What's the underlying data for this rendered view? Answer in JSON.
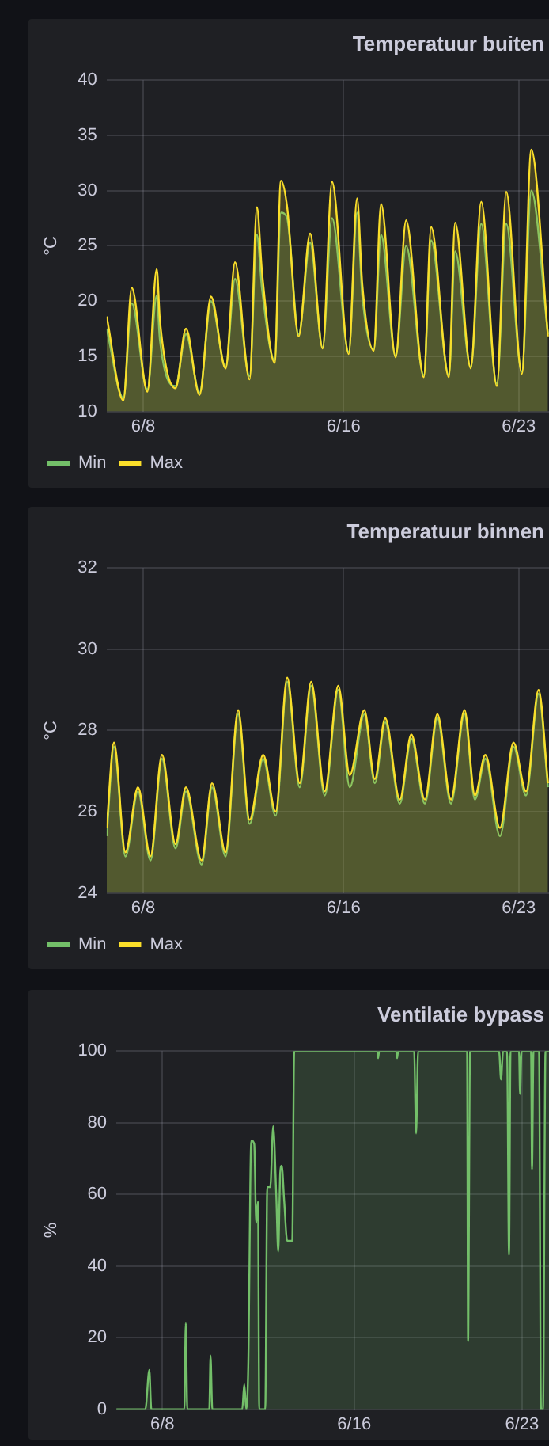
{
  "chart_data": [
    {
      "type": "area",
      "title": "Temperatuur buiten",
      "ylabel": "°C",
      "xlim": [
        "--06-06T13:00",
        "--06-24T05:00"
      ],
      "xticks": [
        {
          "value": "--06-08",
          "label": "6/8"
        },
        {
          "value": "--06-16",
          "label": "6/16"
        },
        {
          "value": "--06-23",
          "label": "6/23"
        }
      ],
      "ylim": [
        10,
        40
      ],
      "yticks": [
        10,
        15,
        20,
        25,
        30,
        35,
        40
      ],
      "grid": true,
      "legend": "bottom left",
      "x": [
        "--06-06T13:00",
        "--06-07T05:00",
        "--06-07T13:00",
        "--06-08T04:00",
        "--06-08T13:00",
        "--06-08T16:00",
        "--06-09T07:00",
        "--06-09T17:00",
        "--06-10T06:00",
        "--06-10T17:00",
        "--06-11T07:00",
        "--06-11T16:00",
        "--06-12T06:00",
        "--06-12T13:00",
        "--06-12T18:00",
        "--06-13T06:00",
        "--06-13T12:00",
        "--06-13T18:00",
        "--06-14T05:00",
        "--06-14T16:00",
        "--06-15T04:00",
        "--06-15T13:00",
        "--06-16T05:00",
        "--06-16T13:00",
        "--06-16T18:00",
        "--06-17T05:00",
        "--06-17T12:00",
        "--06-18T02:00",
        "--06-18T12:00",
        "--06-19T05:00",
        "--06-19T12:00",
        "--06-20T05:00",
        "--06-20T11:00",
        "--06-21T02:00",
        "--06-21T12:00",
        "--06-22T03:00",
        "--06-22T12:00",
        "--06-23T03:00",
        "--06-23T12:00",
        "--06-24T04:00"
      ],
      "series": [
        {
          "name": "Min",
          "color": "#73bf69",
          "values": [
            17.5,
            11.2,
            19.8,
            12.0,
            20.5,
            16.5,
            12.3,
            17.0,
            11.7,
            20.0,
            14.0,
            22.0,
            13.2,
            26.0,
            21.0,
            14.6,
            28.0,
            27.5,
            17.0,
            25.3,
            15.8,
            27.5,
            15.4,
            28.0,
            20.5,
            15.6,
            26.0,
            15.0,
            25.0,
            13.3,
            25.5,
            13.3,
            24.5,
            14.0,
            27.0,
            12.5,
            27.0,
            13.6,
            30.0,
            17.0
          ]
        },
        {
          "name": "Max",
          "color": "#fade2a",
          "values": [
            18.6,
            11.0,
            21.2,
            11.8,
            22.9,
            18.3,
            12.1,
            17.5,
            11.5,
            20.4,
            13.9,
            23.5,
            12.9,
            28.5,
            22.5,
            14.4,
            30.9,
            28.5,
            16.8,
            26.1,
            15.7,
            30.8,
            15.2,
            29.3,
            21.5,
            15.5,
            28.8,
            14.9,
            27.3,
            13.1,
            26.7,
            13.1,
            27.1,
            13.9,
            29.0,
            12.3,
            29.9,
            13.4,
            33.7,
            16.8
          ]
        }
      ]
    },
    {
      "type": "area",
      "title": "Temperatuur binnen",
      "ylabel": "°C",
      "xlim": [
        "--06-06T13:00",
        "--06-24T05:00"
      ],
      "xticks": [
        {
          "value": "--06-08",
          "label": "6/8"
        },
        {
          "value": "--06-16",
          "label": "6/16"
        },
        {
          "value": "--06-23",
          "label": "6/23"
        }
      ],
      "ylim": [
        24,
        32
      ],
      "yticks": [
        24,
        26,
        28,
        30,
        32
      ],
      "grid": true,
      "legend": "bottom left",
      "x": [
        "--06-06T13:00",
        "--06-06T20:00",
        "--06-07T07:00",
        "--06-07T19:00",
        "--06-08T07:00",
        "--06-08T18:00",
        "--06-09T07:00",
        "--06-09T17:00",
        "--06-10T08:00",
        "--06-10T18:00",
        "--06-11T07:00",
        "--06-11T19:00",
        "--06-12T06:00",
        "--06-12T19:00",
        "--06-13T07:00",
        "--06-13T18:00",
        "--06-14T06:00",
        "--06-14T17:00",
        "--06-15T06:00",
        "--06-15T19:00",
        "--06-16T06:00",
        "--06-16T20:00",
        "--06-17T06:00",
        "--06-17T16:00",
        "--06-18T06:00",
        "--06-18T17:00",
        "--06-19T06:00",
        "--06-19T18:00",
        "--06-20T07:00",
        "--06-20T20:00",
        "--06-21T06:00",
        "--06-21T16:00",
        "--06-22T06:00",
        "--06-22T19:00",
        "--06-23T07:00",
        "--06-23T19:00",
        "--06-24T04:00"
      ],
      "series": [
        {
          "name": "Min",
          "color": "#73bf69",
          "values": [
            25.4,
            27.6,
            24.9,
            26.5,
            24.8,
            27.3,
            25.1,
            26.5,
            24.7,
            26.6,
            24.9,
            28.4,
            25.7,
            27.3,
            25.9,
            29.2,
            26.6,
            29.1,
            26.4,
            29.0,
            26.6,
            28.4,
            26.7,
            28.2,
            26.2,
            27.8,
            26.2,
            28.3,
            26.2,
            28.4,
            26.3,
            27.3,
            25.4,
            27.6,
            26.4,
            28.9,
            26.6
          ]
        },
        {
          "name": "Max",
          "color": "#fade2a",
          "values": [
            25.6,
            27.7,
            25.0,
            26.6,
            24.9,
            27.4,
            25.2,
            26.6,
            24.8,
            26.7,
            25.0,
            28.5,
            25.8,
            27.4,
            26.0,
            29.3,
            26.7,
            29.2,
            26.5,
            29.1,
            26.9,
            28.5,
            26.8,
            28.3,
            26.3,
            27.9,
            26.3,
            28.4,
            26.3,
            28.5,
            26.4,
            27.4,
            25.6,
            27.7,
            26.5,
            29.0,
            26.7
          ]
        }
      ]
    },
    {
      "type": "area",
      "title": "Ventilatie bypass",
      "ylabel": "%",
      "xlim": [
        "--06-06T02:00",
        "--06-24T03:00"
      ],
      "xticks": [
        {
          "value": "--06-08",
          "label": "6/8"
        },
        {
          "value": "--06-16",
          "label": "6/16"
        },
        {
          "value": "--06-23",
          "label": "6/23"
        }
      ],
      "ylim": [
        0,
        100
      ],
      "yticks": [
        0,
        20,
        40,
        60,
        80,
        100
      ],
      "grid": true,
      "x": [
        "--06-06T02:00",
        "--06-07T07:00",
        "--06-07T11:00",
        "--06-07T13:00",
        "--06-08T22:00",
        "--06-08T23:30",
        "--06-09T01:00",
        "--06-09T23:00",
        "--06-10T00:15",
        "--06-10T02:00",
        "--06-11T08:00",
        "--06-11T10:00",
        "--06-11T12:00",
        "--06-11T14:00",
        "--06-11T17:00",
        "--06-11T20:00",
        "--06-11T22:00",
        "--06-11T23:45",
        "--06-12T01:00",
        "--06-12T07:00",
        "--06-12T09:00",
        "--06-12T12:00",
        "--06-12T15:00",
        "--06-12T18:00",
        "--06-12T20:00",
        "--06-12T22:00",
        "--06-12T23:30",
        "--06-13T02:00",
        "--06-13T05:00",
        "--06-13T10:00",
        "--06-13T12:00",
        "--06-16T23:00",
        "--06-17T00:00",
        "--06-17T01:00",
        "--06-17T18:00",
        "--06-17T19:00",
        "--06-17T20:00",
        "--06-18T12:00",
        "--06-18T14:00",
        "--06-18T16:00",
        "--06-20T17:00",
        "--06-20T18:00",
        "--06-20T20:00",
        "--06-22T01:00",
        "--06-22T03:00",
        "--06-22T05:00",
        "--06-22T09:00",
        "--06-22T11:00",
        "--06-22T12:30",
        "--06-22T21:00",
        "--06-22T22:00",
        "--06-22T23:30",
        "--06-23T09:00",
        "--06-23T10:00",
        "--06-23T11:30",
        "--06-23T17:00",
        "--06-23T19:00",
        "--06-23T21:00",
        "--06-23T23:30",
        "--06-24T03:00"
      ],
      "series": [
        {
          "color": "#73bf69",
          "values": [
            0,
            0,
            11,
            0,
            0,
            24,
            0,
            0,
            15,
            0,
            0,
            7,
            0,
            12,
            75,
            74,
            52,
            58,
            0,
            0,
            62,
            62,
            79,
            60,
            44,
            66,
            68,
            58,
            47,
            47,
            100,
            100,
            98,
            100,
            100,
            98,
            100,
            100,
            77,
            100,
            100,
            19,
            100,
            100,
            92,
            100,
            100,
            43,
            100,
            100,
            88,
            100,
            100,
            67,
            100,
            100,
            0,
            0,
            100,
            100
          ]
        }
      ]
    }
  ]
}
